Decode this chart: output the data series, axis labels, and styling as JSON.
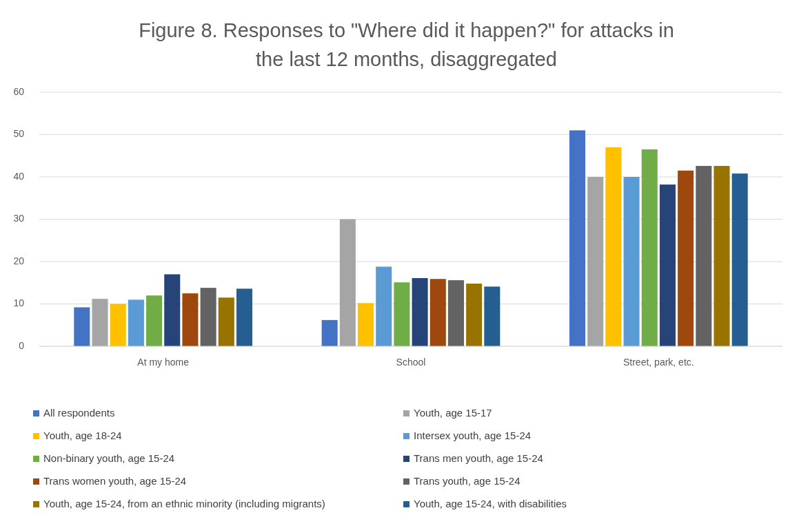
{
  "chart_data": {
    "type": "bar",
    "title": "Figure 8. Responses to \"Where did it happen?\" for attacks in the last 12 months, disaggregated",
    "categories": [
      "At my home",
      "School",
      "Street, park, etc."
    ],
    "series": [
      {
        "name": "All respondents",
        "color": "#4472c4",
        "values": [
          9.2,
          6.2,
          51
        ]
      },
      {
        "name": "Youth, age 15-17",
        "color": "#a5a5a5",
        "values": [
          11.2,
          30,
          40
        ]
      },
      {
        "name": "Youth, age 18-24",
        "color": "#ffc000",
        "values": [
          10,
          10.2,
          47
        ]
      },
      {
        "name": "Intersex youth, age 15-24",
        "color": "#5b9bd5",
        "values": [
          11,
          18.8,
          40
        ]
      },
      {
        "name": "Non-binary youth, age 15-24",
        "color": "#70ad47",
        "values": [
          12,
          15.1,
          46.5
        ]
      },
      {
        "name": "Trans men youth, age 15-24",
        "color": "#264478",
        "values": [
          17,
          16.1,
          38.2
        ]
      },
      {
        "name": "Trans women youth, age 15-24",
        "color": "#9e480e",
        "values": [
          12.5,
          15.9,
          41.5
        ]
      },
      {
        "name": "Trans youth, age 15-24",
        "color": "#636363",
        "values": [
          13.8,
          15.6,
          42.6
        ]
      },
      {
        "name": "Youth, age 15-24, from an ethnic minority (including migrants)",
        "color": "#997300",
        "values": [
          11.5,
          14.8,
          42.6
        ]
      },
      {
        "name": "Youth, age 15-24, with disabilities",
        "color": "#255e91",
        "values": [
          13.6,
          14.1,
          40.8
        ]
      }
    ],
    "ylim": [
      0,
      60
    ],
    "yticks": [
      0,
      10,
      20,
      30,
      40,
      50,
      60
    ],
    "grid": "y",
    "legend": "bottom"
  }
}
